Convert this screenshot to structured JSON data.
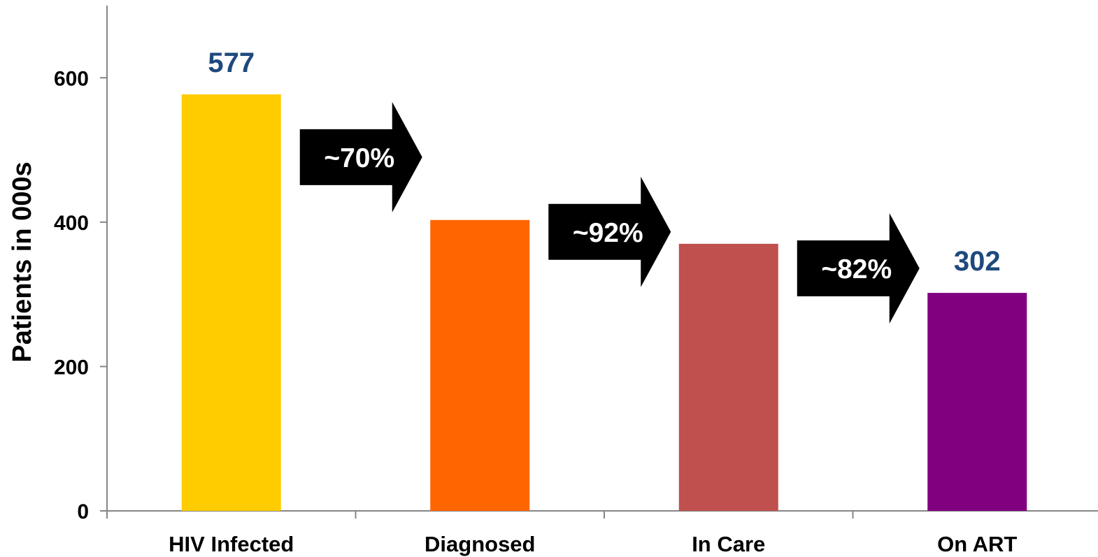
{
  "chart_data": {
    "type": "bar",
    "title": "",
    "xlabel": "",
    "ylabel": "Patients in 000s",
    "categories": [
      "HIV Infected",
      "Diagnosed",
      "In Care",
      "On ART"
    ],
    "values": [
      577,
      403,
      370,
      302
    ],
    "colors": [
      "#FFCC00",
      "#FF6600",
      "#C0504D",
      "#800080"
    ],
    "ylim": [
      0,
      700
    ],
    "yticks": [
      0,
      200,
      400,
      600
    ],
    "ytick_labels": [
      "0",
      "200",
      "400",
      "600"
    ],
    "grid": false,
    "data_labels": [
      {
        "category_index": 0,
        "text": "577"
      },
      {
        "category_index": 3,
        "text": "302"
      }
    ],
    "data_label_color": "#1F497D",
    "annotations": [
      {
        "from_index": 0,
        "to_index": 1,
        "text": "~70%"
      },
      {
        "from_index": 1,
        "to_index": 2,
        "text": "~92%"
      },
      {
        "from_index": 2,
        "to_index": 3,
        "text": "~82%"
      }
    ],
    "arrow_color": "#000000"
  }
}
